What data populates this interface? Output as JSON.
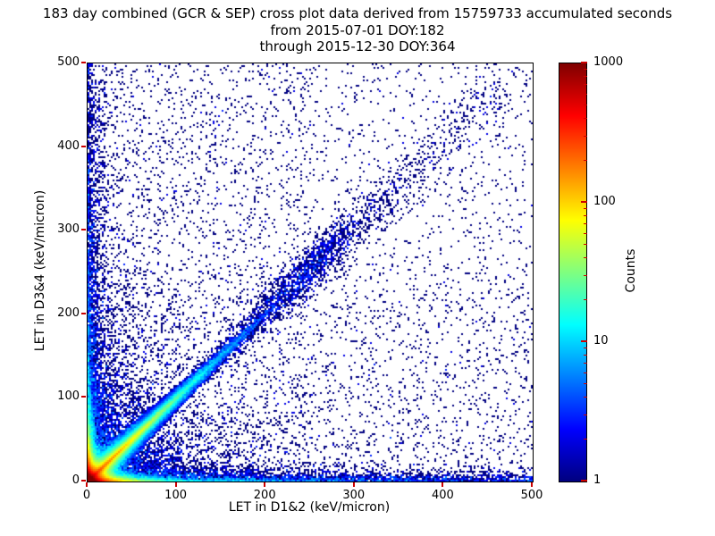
{
  "figure": {
    "title_line1": "183 day combined (GCR & SEP) cross plot data derived from 15759733 accumulated seconds",
    "title_line2": "from 2015-07-01 DOY:182",
    "title_line3": "through 2015-12-30 DOY:364"
  },
  "chart_data": {
    "type": "heatmap",
    "title": "183 day combined (GCR & SEP) cross plot data derived from 15759733 accumulated seconds",
    "subtitle": [
      "from 2015-07-01 DOY:182",
      "through 2015-12-30 DOY:364"
    ],
    "xlabel": "LET in D1&2 (keV/micron)",
    "ylabel": "LET in D3&4 (keV/micron)",
    "xlim": [
      0,
      500
    ],
    "ylim": [
      0,
      500
    ],
    "x_ticks": [
      0,
      100,
      200,
      300,
      400,
      500
    ],
    "y_ticks": [
      0,
      100,
      200,
      300,
      400,
      500
    ],
    "grid": false,
    "tick_color": "#cc0000",
    "background": "#ffffff",
    "colorbar": {
      "label": "Counts",
      "scale": "log",
      "range": [
        1,
        1000
      ],
      "ticks": [
        1,
        10,
        100,
        1000
      ],
      "colormap": "jet",
      "position": "right",
      "single_count_color": "#00007f",
      "max_count_color": "#7f0000"
    },
    "stats": {
      "days": 183,
      "particle_sources": "GCR & SEP",
      "accumulated_seconds": 15759733,
      "start_date": "2015-07-01",
      "start_doy": 182,
      "end_date": "2015-12-30",
      "end_doy": 364
    },
    "features": [
      "very dense hot spot (counts approaching 1000, dark red/red) at the origin, below ~10 keV/micron in both detectors",
      "warm (orange-yellow-green) ridge along y~0 extending to x~60 keV/micron",
      "warm (orange-yellow-green) ridge along x~0 extending to y~60 keV/micron",
      "cyan-green correlation band along y~x near the origin fading to blue by ~150 keV/micron",
      "speckled dark-blue diagonal band y~x continuing to ~450 with a denser clump near (230-300, 240-310)",
      "fan of faint straight streaks radiating from the origin between both axes and the diagonal",
      "dense single-count column along the left edge up to y~500 and row along the bottom edge out to x~500",
      "sparse single-count (dark navy) background scatter across the entire plane, denser at low LET"
    ]
  }
}
